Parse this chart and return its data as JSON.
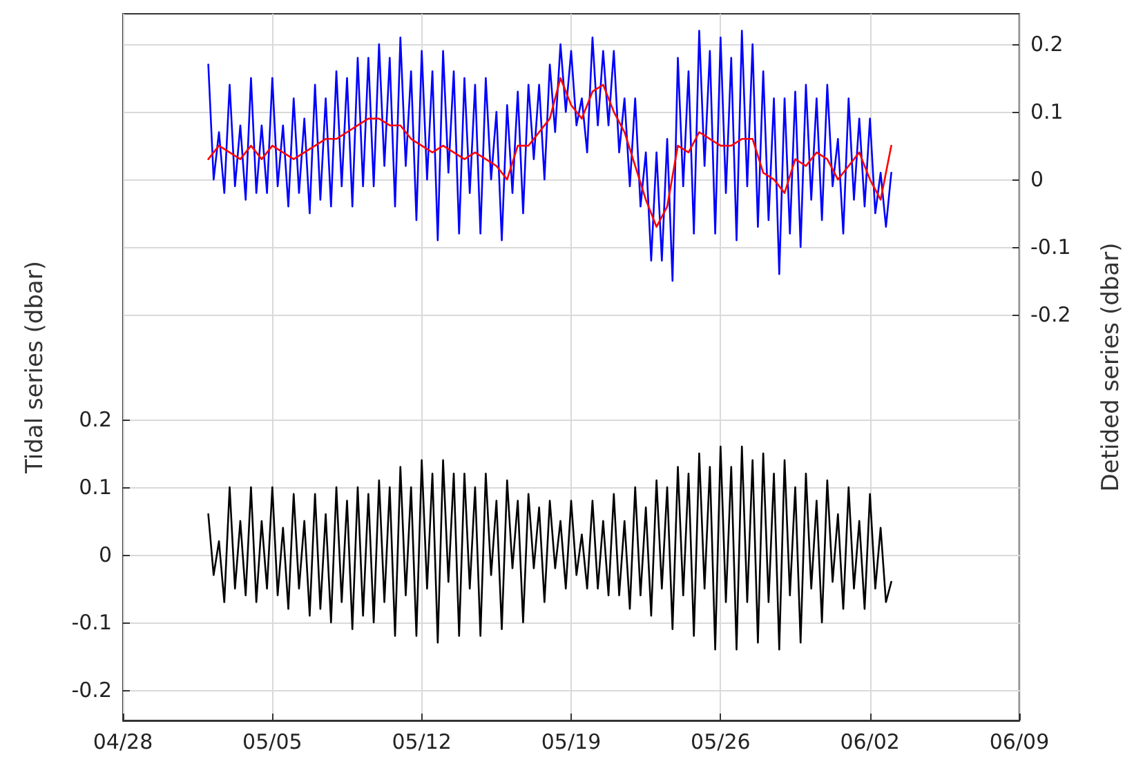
{
  "chart_data": {
    "type": "line",
    "xlabel": null,
    "ylabel": "Tidal series (dbar)",
    "y2label": "Detided series (dbar)",
    "xlim": [
      "--04-28",
      "--06-09"
    ],
    "xticks": [
      {
        "value": "--04-28",
        "label": "04/28"
      },
      {
        "value": "--05-05",
        "label": "05/05"
      },
      {
        "value": "--05-12",
        "label": "05/12"
      },
      {
        "value": "--05-19",
        "label": "05/19"
      },
      {
        "value": "--05-26",
        "label": "05/26"
      },
      {
        "value": "--06-02",
        "label": "06/02"
      },
      {
        "value": "--06-09",
        "label": "06/09"
      }
    ],
    "ylim": [
      -0.245,
      0.8
    ],
    "yticks": [
      -0.2,
      -0.1,
      0,
      0.1,
      0.2
    ],
    "y2lim": [
      -0.8,
      0.245
    ],
    "y2ticks": [
      -0.2,
      -0.1,
      0,
      0.1,
      0.2
    ],
    "grid": true,
    "marker": "none",
    "line_style": "solid",
    "x": [
      "--05-02T00:00",
      "--05-02T06:00",
      "--05-02T12:00",
      "--05-02T18:00",
      "--05-03T00:00",
      "--05-03T06:00",
      "--05-03T12:00",
      "--05-03T18:00",
      "--05-04T00:00",
      "--05-04T06:00",
      "--05-04T12:00",
      "--05-04T18:00",
      "--05-05T00:00",
      "--05-05T06:00",
      "--05-05T12:00",
      "--05-05T18:00",
      "--05-06T00:00",
      "--05-06T06:00",
      "--05-06T12:00",
      "--05-06T18:00",
      "--05-07T00:00",
      "--05-07T06:00",
      "--05-07T12:00",
      "--05-07T18:00",
      "--05-08T00:00",
      "--05-08T06:00",
      "--05-08T12:00",
      "--05-08T18:00",
      "--05-09T00:00",
      "--05-09T06:00",
      "--05-09T12:00",
      "--05-09T18:00",
      "--05-10T00:00",
      "--05-10T06:00",
      "--05-10T12:00",
      "--05-10T18:00",
      "--05-11T00:00",
      "--05-11T06:00",
      "--05-11T12:00",
      "--05-11T18:00",
      "--05-12T00:00",
      "--05-12T06:00",
      "--05-12T12:00",
      "--05-12T18:00",
      "--05-13T00:00",
      "--05-13T06:00",
      "--05-13T12:00",
      "--05-13T18:00",
      "--05-14T00:00",
      "--05-14T06:00",
      "--05-14T12:00",
      "--05-14T18:00",
      "--05-15T00:00",
      "--05-15T06:00",
      "--05-15T12:00",
      "--05-15T18:00",
      "--05-16T00:00",
      "--05-16T06:00",
      "--05-16T12:00",
      "--05-16T18:00",
      "--05-17T00:00",
      "--05-17T06:00",
      "--05-17T12:00",
      "--05-17T18:00",
      "--05-18T00:00",
      "--05-18T06:00",
      "--05-18T12:00",
      "--05-18T18:00",
      "--05-19T00:00",
      "--05-19T06:00",
      "--05-19T12:00",
      "--05-19T18:00",
      "--05-20T00:00",
      "--05-20T06:00",
      "--05-20T12:00",
      "--05-20T18:00",
      "--05-21T00:00",
      "--05-21T06:00",
      "--05-21T12:00",
      "--05-21T18:00",
      "--05-22T00:00",
      "--05-22T06:00",
      "--05-22T12:00",
      "--05-22T18:00",
      "--05-23T00:00",
      "--05-23T06:00",
      "--05-23T12:00",
      "--05-23T18:00",
      "--05-24T00:00",
      "--05-24T06:00",
      "--05-24T12:00",
      "--05-24T18:00",
      "--05-25T00:00",
      "--05-25T06:00",
      "--05-25T12:00",
      "--05-25T18:00",
      "--05-26T00:00",
      "--05-26T06:00",
      "--05-26T12:00",
      "--05-26T18:00",
      "--05-27T00:00",
      "--05-27T06:00",
      "--05-27T12:00",
      "--05-27T18:00",
      "--05-28T00:00",
      "--05-28T06:00",
      "--05-28T12:00",
      "--05-28T18:00",
      "--05-29T00:00",
      "--05-29T06:00",
      "--05-29T12:00",
      "--05-29T18:00",
      "--05-30T00:00",
      "--05-30T06:00",
      "--05-30T12:00",
      "--05-30T18:00",
      "--05-31T00:00",
      "--05-31T06:00",
      "--05-31T12:00",
      "--05-31T18:00",
      "--06-01T00:00",
      "--06-01T06:00",
      "--06-01T12:00",
      "--06-01T18:00",
      "--06-02T00:00",
      "--06-02T06:00",
      "--06-02T12:00",
      "--06-02T18:00",
      "--06-03T00:00"
    ],
    "series": [
      {
        "color": "#0000ff",
        "axis": "y2",
        "values": [
          0.17,
          0.0,
          0.07,
          -0.02,
          0.14,
          -0.01,
          0.08,
          -0.03,
          0.15,
          -0.02,
          0.08,
          -0.02,
          0.15,
          -0.01,
          0.08,
          -0.04,
          0.12,
          -0.02,
          0.09,
          -0.05,
          0.14,
          -0.03,
          0.12,
          -0.04,
          0.16,
          -0.01,
          0.15,
          -0.04,
          0.18,
          -0.01,
          0.18,
          -0.01,
          0.2,
          0.02,
          0.18,
          -0.04,
          0.21,
          0.02,
          0.16,
          -0.06,
          0.19,
          0.0,
          0.16,
          -0.09,
          0.19,
          0.01,
          0.16,
          -0.08,
          0.15,
          -0.02,
          0.14,
          -0.08,
          0.15,
          0.0,
          0.1,
          -0.09,
          0.11,
          -0.02,
          0.13,
          -0.05,
          0.14,
          0.03,
          0.14,
          0.0,
          0.17,
          0.07,
          0.2,
          0.1,
          0.19,
          0.08,
          0.12,
          0.04,
          0.21,
          0.08,
          0.19,
          0.08,
          0.19,
          0.04,
          0.12,
          -0.01,
          0.12,
          -0.04,
          0.04,
          -0.12,
          0.04,
          -0.12,
          0.06,
          -0.15,
          0.18,
          -0.01,
          0.16,
          -0.08,
          0.22,
          0.02,
          0.19,
          -0.08,
          0.21,
          -0.02,
          0.18,
          -0.09,
          0.22,
          -0.01,
          0.2,
          -0.07,
          0.16,
          -0.06,
          0.12,
          -0.14,
          0.12,
          -0.08,
          0.13,
          -0.1,
          0.14,
          -0.03,
          0.12,
          -0.06,
          0.14,
          -0.01,
          0.06,
          -0.08,
          0.12,
          -0.03,
          0.09,
          -0.04,
          0.09,
          -0.05,
          0.01,
          -0.07,
          0.01
        ]
      },
      {
        "color": "#ff0000",
        "axis": "y2",
        "x": [
          "--05-02T00:00",
          "--05-02T12:00",
          "--05-03T00:00",
          "--05-03T12:00",
          "--05-04T00:00",
          "--05-04T12:00",
          "--05-05T00:00",
          "--05-05T12:00",
          "--05-06T00:00",
          "--05-06T12:00",
          "--05-07T00:00",
          "--05-07T12:00",
          "--05-08T00:00",
          "--05-08T12:00",
          "--05-09T00:00",
          "--05-09T12:00",
          "--05-10T00:00",
          "--05-10T12:00",
          "--05-11T00:00",
          "--05-11T12:00",
          "--05-12T00:00",
          "--05-12T12:00",
          "--05-13T00:00",
          "--05-13T12:00",
          "--05-14T00:00",
          "--05-14T12:00",
          "--05-15T00:00",
          "--05-15T12:00",
          "--05-16T00:00",
          "--05-16T12:00",
          "--05-17T00:00",
          "--05-17T12:00",
          "--05-18T00:00",
          "--05-18T12:00",
          "--05-19T00:00",
          "--05-19T12:00",
          "--05-20T00:00",
          "--05-20T12:00",
          "--05-21T00:00",
          "--05-21T12:00",
          "--05-22T00:00",
          "--05-22T12:00",
          "--05-23T00:00",
          "--05-23T12:00",
          "--05-24T00:00",
          "--05-24T12:00",
          "--05-25T00:00",
          "--05-25T12:00",
          "--05-26T00:00",
          "--05-26T12:00",
          "--05-27T00:00",
          "--05-27T12:00",
          "--05-28T00:00",
          "--05-28T12:00",
          "--05-29T00:00",
          "--05-29T12:00",
          "--05-30T00:00",
          "--05-30T12:00",
          "--05-31T00:00",
          "--05-31T12:00",
          "--06-01T00:00",
          "--06-01T12:00",
          "--06-02T00:00",
          "--06-02T12:00",
          "--06-03T00:00"
        ],
        "values": [
          0.03,
          0.05,
          0.04,
          0.03,
          0.05,
          0.03,
          0.05,
          0.04,
          0.03,
          0.04,
          0.05,
          0.06,
          0.06,
          0.07,
          0.08,
          0.09,
          0.09,
          0.08,
          0.08,
          0.06,
          0.05,
          0.04,
          0.05,
          0.04,
          0.03,
          0.04,
          0.03,
          0.02,
          0.0,
          0.05,
          0.05,
          0.07,
          0.09,
          0.15,
          0.11,
          0.09,
          0.13,
          0.14,
          0.1,
          0.07,
          0.02,
          -0.03,
          -0.07,
          -0.04,
          0.05,
          0.04,
          0.07,
          0.06,
          0.05,
          0.05,
          0.06,
          0.06,
          0.01,
          0.0,
          -0.02,
          0.03,
          0.02,
          0.04,
          0.03,
          0.0,
          0.02,
          0.04,
          0.0,
          -0.03,
          0.05
        ]
      },
      {
        "color": "#000000",
        "values": [
          0.06,
          -0.03,
          0.02,
          -0.07,
          0.1,
          -0.05,
          0.05,
          -0.06,
          0.1,
          -0.07,
          0.05,
          -0.05,
          0.1,
          -0.06,
          0.04,
          -0.08,
          0.09,
          -0.05,
          0.05,
          -0.09,
          0.09,
          -0.08,
          0.06,
          -0.1,
          0.1,
          -0.07,
          0.08,
          -0.11,
          0.1,
          -0.09,
          0.09,
          -0.1,
          0.11,
          -0.07,
          0.1,
          -0.12,
          0.13,
          -0.06,
          0.1,
          -0.12,
          0.14,
          -0.05,
          0.12,
          -0.13,
          0.14,
          -0.04,
          0.12,
          -0.12,
          0.12,
          -0.05,
          0.1,
          -0.12,
          0.12,
          -0.03,
          0.08,
          -0.11,
          0.11,
          -0.02,
          0.08,
          -0.1,
          0.09,
          -0.02,
          0.07,
          -0.07,
          0.08,
          -0.02,
          0.05,
          -0.05,
          0.08,
          -0.03,
          0.03,
          -0.05,
          0.08,
          -0.05,
          0.05,
          -0.06,
          0.09,
          -0.06,
          0.05,
          -0.08,
          0.1,
          -0.06,
          0.07,
          -0.09,
          0.11,
          -0.05,
          0.1,
          -0.11,
          0.13,
          -0.06,
          0.12,
          -0.12,
          0.15,
          -0.05,
          0.13,
          -0.14,
          0.16,
          -0.07,
          0.13,
          -0.14,
          0.16,
          -0.07,
          0.14,
          -0.13,
          0.15,
          -0.07,
          0.12,
          -0.14,
          0.14,
          -0.06,
          0.1,
          -0.13,
          0.12,
          -0.05,
          0.08,
          -0.1,
          0.11,
          -0.04,
          0.06,
          -0.08,
          0.1,
          -0.05,
          0.05,
          -0.08,
          0.09,
          -0.05,
          0.04,
          -0.07,
          -0.04
        ]
      }
    ]
  }
}
